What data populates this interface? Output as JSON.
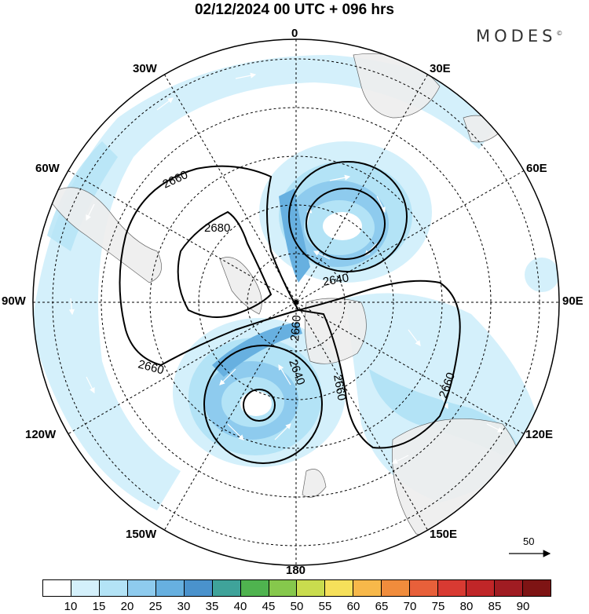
{
  "title": "02/12/2024  00 UTC  + 096 hrs",
  "brand": "MODES",
  "brand_mark": "©",
  "longitude_labels": {
    "lon_0": "0",
    "lon_30e": "30E",
    "lon_60e": "60E",
    "lon_90e": "90E",
    "lon_120e": "120E",
    "lon_150e": "150E",
    "lon_180": "180",
    "lon_150w": "150W",
    "lon_120w": "120W",
    "lon_90w": "90W",
    "lon_60w": "60W",
    "lon_30w": "30W"
  },
  "contour_labels": {
    "c2660_a": "2660",
    "c2680": "2680",
    "c2640_a": "2640",
    "c2660_b": "2660",
    "c2660_c": "2660",
    "c2640_b": "2640",
    "c2660_d": "2660",
    "c2660_e": "2660"
  },
  "reference_vector": "50",
  "colorbar": {
    "colors": [
      "#ffffff",
      "#d4f0fb",
      "#b3e3f6",
      "#8ecbee",
      "#67b0e0",
      "#4a92cc",
      "#3fa39a",
      "#4fb34f",
      "#86c84c",
      "#c9dc4e",
      "#f6e05a",
      "#f7b84a",
      "#f08c3c",
      "#e8603a",
      "#d83a32",
      "#c02628",
      "#a01c22",
      "#7e1414"
    ],
    "ticks": [
      "10",
      "15",
      "20",
      "25",
      "30",
      "35",
      "40",
      "45",
      "50",
      "55",
      "60",
      "65",
      "70",
      "75",
      "80",
      "85",
      "90"
    ]
  }
}
